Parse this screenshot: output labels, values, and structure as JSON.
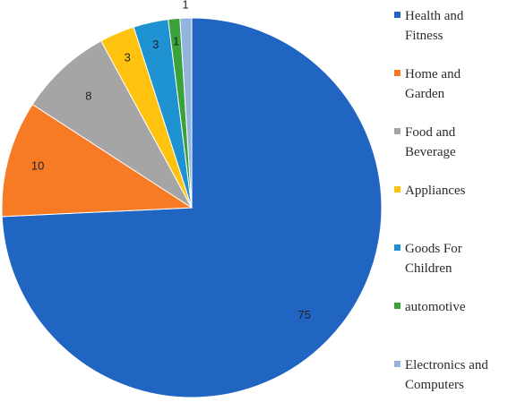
{
  "chart_data": {
    "type": "pie",
    "title": "",
    "legend_position": "right",
    "slices": [
      {
        "label": "Health and Fitness",
        "value": 75,
        "color": "#1f65c1"
      },
      {
        "label": "Home and Garden",
        "value": 10,
        "color": "#f77a24"
      },
      {
        "label": "Food and Beverage",
        "value": 8,
        "color": "#a5a5a5"
      },
      {
        "label": "Appliances",
        "value": 3,
        "color": "#ffc20e"
      },
      {
        "label": "Goods For Children",
        "value": 3,
        "color": "#1f93d1"
      },
      {
        "label": "automotive",
        "value": 1,
        "color": "#3aa23a"
      },
      {
        "label": "Electronics and Computers",
        "value": 1,
        "color": "#92b4df"
      }
    ]
  }
}
